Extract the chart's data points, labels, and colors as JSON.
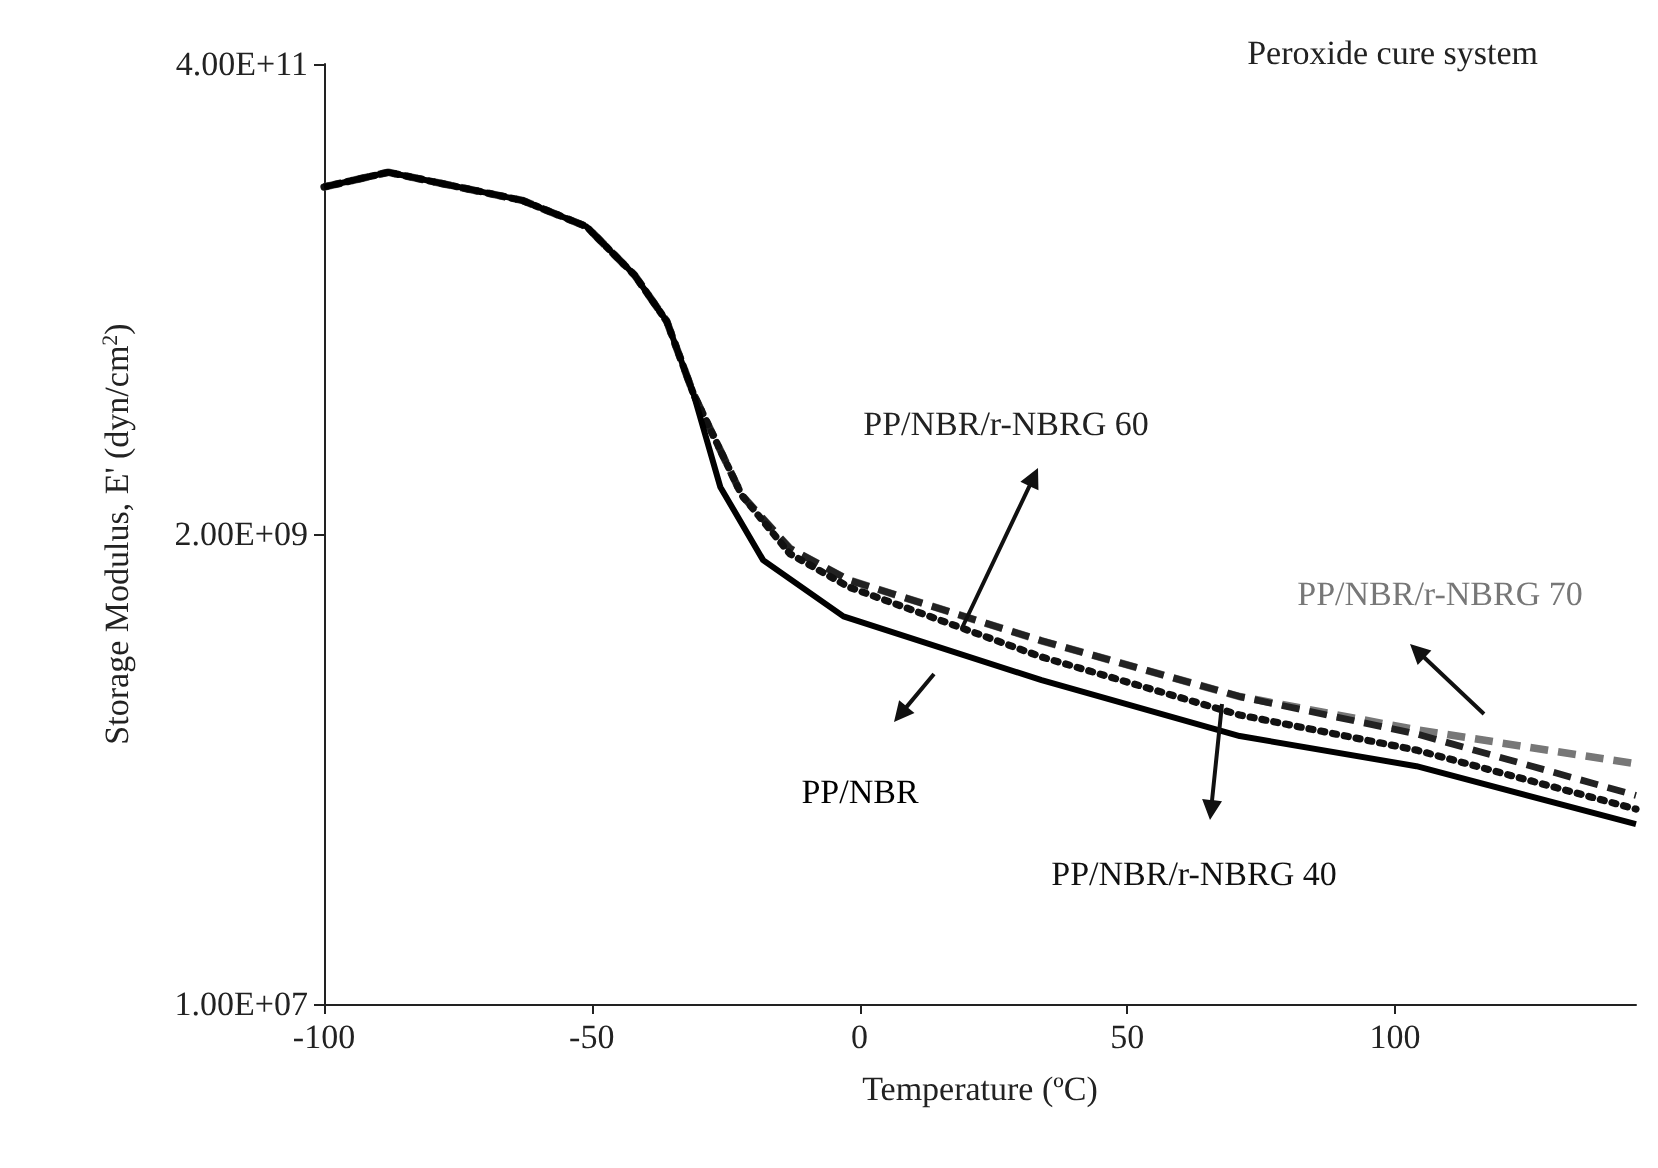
{
  "chart_data": {
    "type": "line",
    "xlabel": "Temperature (ºC)",
    "ylabel": "Storage Modulus, E' (dyn/cm$^{2}$)",
    "annotations": [
      "Peroxide cure system"
    ],
    "xlim": [
      -100,
      145
    ],
    "xticks": [
      -100,
      -50,
      0,
      50,
      100
    ],
    "ylim": [
      10000000.0,
      400000000000.0
    ],
    "yticks": [
      {
        "value": 10000000.0,
        "label": "1.00E+07"
      },
      {
        "value": 2000000000.0,
        "label": "2.00E+09"
      },
      {
        "value": 400000000000.0,
        "label": "4.00E+11"
      }
    ],
    "log": "y",
    "grid": false,
    "legend": false,
    "marker": "none",
    "series": [
      {
        "name": "PP/NBR",
        "color": "#000000",
        "line_style": "solid",
        "x": [
          -100,
          -88,
          -63,
          -51,
          -42,
          -36,
          -31,
          -26,
          -18,
          -3,
          34,
          71,
          104,
          145
        ],
        "values": [
          100000000000.0,
          118000000000.0,
          86000000000.0,
          64000000000.0,
          37000000000.0,
          22000000000.0,
          9700000000.0,
          3400000000.0,
          1490000000.0,
          790000000.0,
          385000000.0,
          205000000.0,
          146000000.0,
          76000000.0
        ]
      },
      {
        "name": "PP/NBR/r-NBRG 40",
        "color": "#111111",
        "line_style": "dotted",
        "x": [
          -100,
          -88,
          -63,
          -51,
          -42,
          -36,
          -31,
          -22,
          -13,
          -2,
          34,
          71,
          104,
          145
        ],
        "values": [
          100000000000.0,
          118000000000.0,
          86000000000.0,
          64000000000.0,
          37000000000.0,
          22000000000.0,
          9700000000.0,
          3100000000.0,
          1600000000.0,
          1100000000.0,
          500000000.0,
          260000000.0,
          175000000.0,
          90000000.0
        ]
      },
      {
        "name": "PP/NBR/r-NBRG 60",
        "color": "#222222",
        "line_style": "dashed",
        "x": [
          -100,
          -88,
          -63,
          -51,
          -42,
          -36,
          -31,
          -22,
          -13,
          -2,
          34,
          71,
          104,
          145
        ],
        "values": [
          100000000000.0,
          118000000000.0,
          86000000000.0,
          64000000000.0,
          37000000000.0,
          22000000000.0,
          9700000000.0,
          3100000000.0,
          1700000000.0,
          1190000000.0,
          600000000.0,
          320000000.0,
          210000000.0,
          105000000.0
        ]
      },
      {
        "name": "PP/NBR/r-NBRG 70",
        "color": "#777777",
        "line_style": "dashed",
        "x": [
          -100,
          -88,
          -63,
          -51,
          -42,
          -36,
          -31,
          -22,
          -13,
          -2,
          34,
          71,
          104,
          145
        ],
        "values": [
          100000000000.0,
          118000000000.0,
          86000000000.0,
          64000000000.0,
          37000000000.0,
          22000000000.0,
          9700000000.0,
          3100000000.0,
          1700000000.0,
          1190000000.0,
          600000000.0,
          320000000.0,
          220000000.0,
          150000000.0
        ]
      }
    ]
  }
}
